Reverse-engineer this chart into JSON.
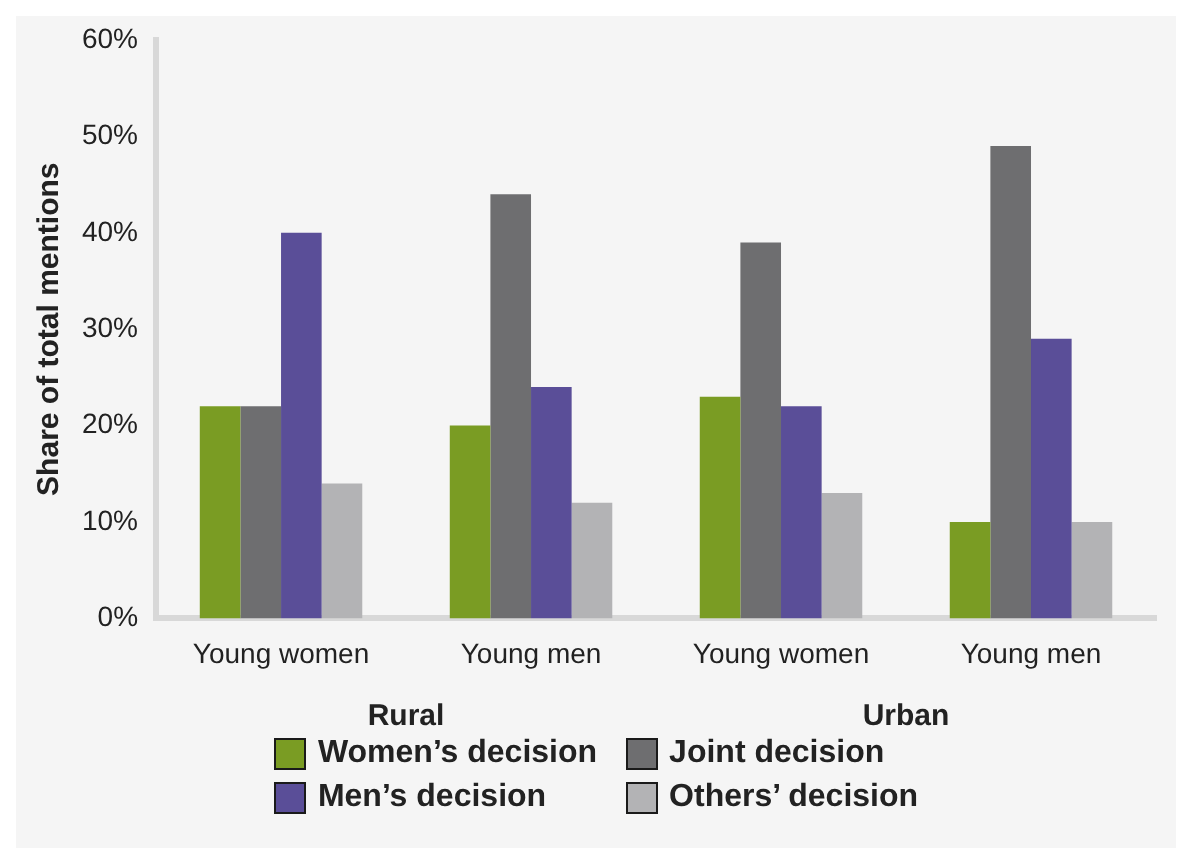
{
  "chart_data": {
    "type": "bar",
    "ylabel": "Share of total mentions",
    "categories": [
      "Young women",
      "Young men",
      "Young women",
      "Young men"
    ],
    "series": [
      {
        "name": "Women’s decision",
        "color": "#7a9c23",
        "values": [
          22,
          20,
          23,
          10
        ]
      },
      {
        "name": "Joint decision",
        "color": "#6e6e70",
        "values": [
          22,
          44,
          39,
          49
        ]
      },
      {
        "name": "Men’s decision",
        "color": "#5a4e98",
        "values": [
          40,
          24,
          22,
          29
        ]
      },
      {
        "name": "Others’ decision",
        "color": "#b3b3b5",
        "values": [
          14,
          12,
          13,
          10
        ]
      }
    ],
    "ylim": [
      0,
      60
    ],
    "yticks": [
      {
        "value": 0,
        "label": "0%"
      },
      {
        "value": 10,
        "label": "10%"
      },
      {
        "value": 20,
        "label": "20%"
      },
      {
        "value": 30,
        "label": "30%"
      },
      {
        "value": 40,
        "label": "40%"
      },
      {
        "value": 50,
        "label": "50%"
      },
      {
        "value": 60,
        "label": "60%"
      }
    ],
    "grid": false,
    "legend": "bottom",
    "annotations": [
      "Rural",
      "Urban"
    ]
  }
}
